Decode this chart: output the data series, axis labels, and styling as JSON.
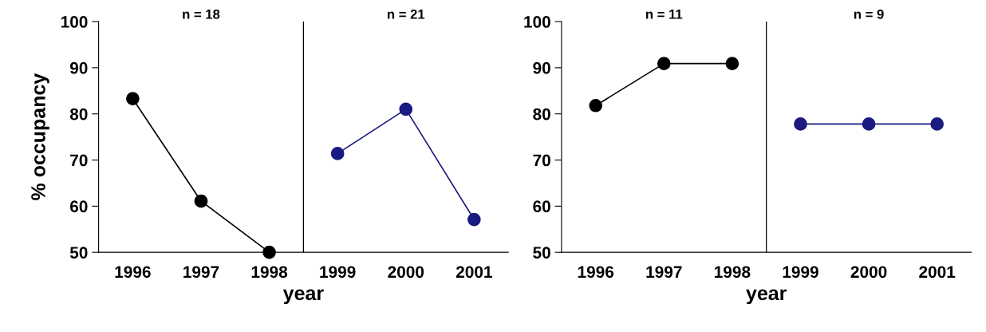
{
  "chart_data": [
    {
      "type": "line",
      "x": [
        1996,
        1997,
        1998,
        1999,
        2000,
        2001
      ],
      "xlim": [
        1995.5,
        2001.5
      ],
      "xticks": [
        1996,
        1997,
        1998,
        1999,
        2000,
        2001
      ],
      "ylim": [
        50,
        100
      ],
      "yticks": [
        50,
        60,
        70,
        80,
        90,
        100
      ],
      "xlabel": "year",
      "ylabel": "% occupancy",
      "marker": "circle",
      "grid": false,
      "legend": false,
      "series": [
        {
          "color": "#000000",
          "values": [
            83.3,
            61.1,
            50.0,
            null,
            null,
            null
          ]
        },
        {
          "color": "#1a1a80",
          "values": [
            null,
            null,
            null,
            71.4,
            81.0,
            57.1
          ]
        }
      ],
      "ref_lines": [
        {
          "axis": "x",
          "value": 1998.5,
          "color": "#000000"
        }
      ],
      "annotations": [
        "n = 18",
        "n = 21"
      ]
    },
    {
      "type": "line",
      "x": [
        1996,
        1997,
        1998,
        1999,
        2000,
        2001
      ],
      "xlim": [
        1995.5,
        2001.5
      ],
      "xticks": [
        1996,
        1997,
        1998,
        1999,
        2000,
        2001
      ],
      "ylim": [
        50,
        100
      ],
      "yticks": [
        50,
        60,
        70,
        80,
        90,
        100
      ],
      "xlabel": "year",
      "marker": "circle",
      "grid": false,
      "legend": false,
      "series": [
        {
          "color": "#000000",
          "values": [
            81.8,
            90.9,
            90.9,
            null,
            null,
            null
          ]
        },
        {
          "color": "#1a1a80",
          "values": [
            null,
            null,
            null,
            77.8,
            77.8,
            77.8
          ]
        }
      ],
      "ref_lines": [
        {
          "axis": "x",
          "value": 1998.5,
          "color": "#000000"
        }
      ],
      "annotations": [
        "n = 11",
        "n = 9"
      ]
    }
  ]
}
